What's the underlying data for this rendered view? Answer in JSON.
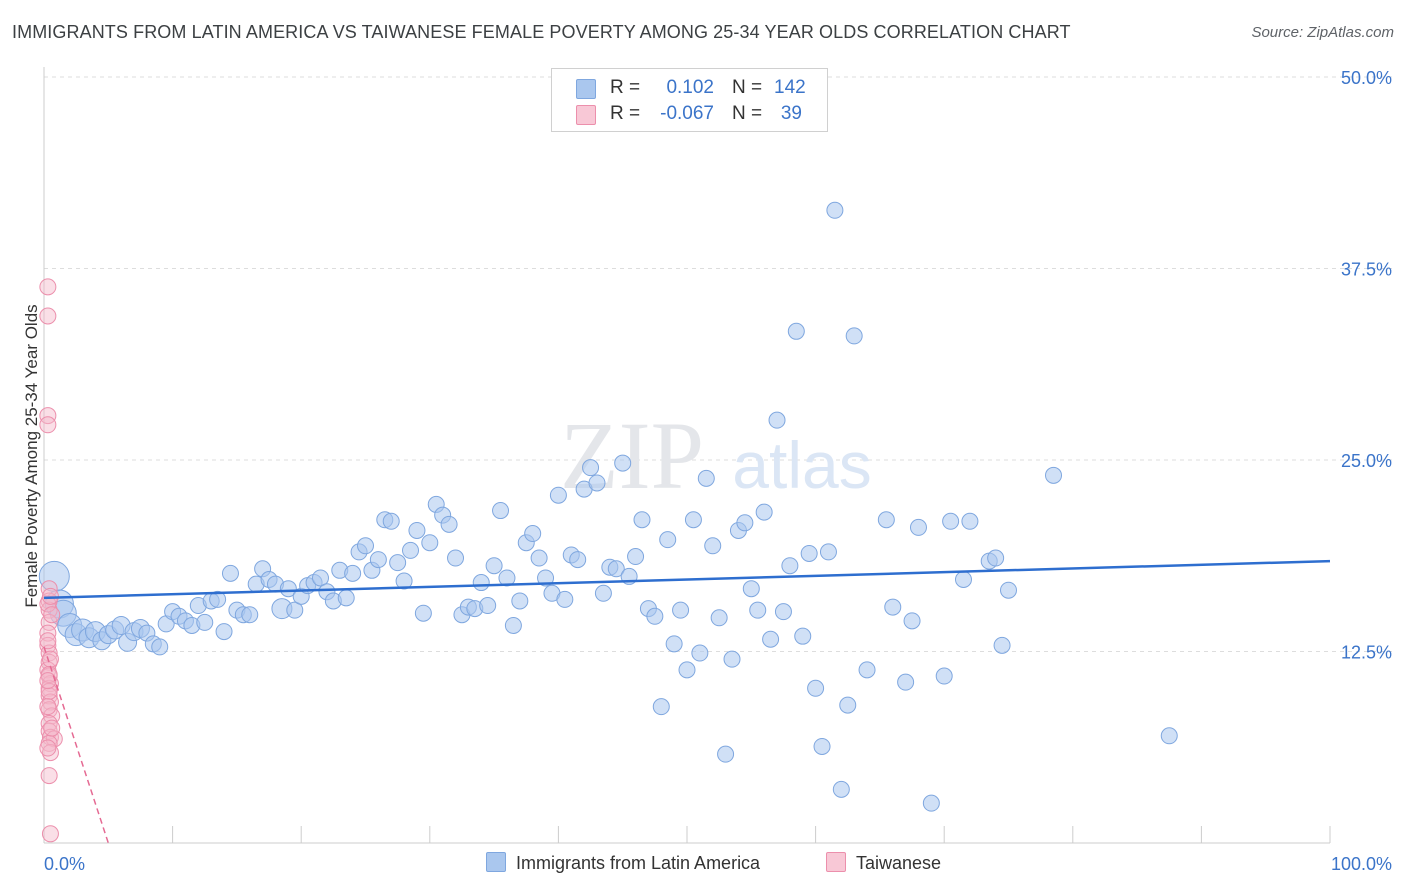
{
  "title": "IMMIGRANTS FROM LATIN AMERICA VS TAIWANESE FEMALE POVERTY AMONG 25-34 YEAR OLDS CORRELATION CHART",
  "source": "Source: ZipAtlas.com",
  "watermark": {
    "zip": "ZIP",
    "atlas": "atlas"
  },
  "legend_top": {
    "rows": [
      {
        "r_label": "R =",
        "r_value": "0.102",
        "n_label": "N =",
        "n_value": "142",
        "color": "#aac7ee"
      },
      {
        "r_label": "R =",
        "r_value": "-0.067",
        "n_label": "N =",
        "n_value": "39",
        "color": "#f4b7c9"
      }
    ]
  },
  "bottom_legend": {
    "blue_label": "Immigrants from Latin America",
    "pink_label": "Taiwanese"
  },
  "colors": {
    "blue_fill": "#aac7ee",
    "blue_stroke": "#7fa7df",
    "blue_line": "#2e6ecf",
    "pink_fill": "#f4b7c9",
    "pink_stroke": "#ec8fac",
    "pink_line": "#e56a93",
    "axis_text": "#3b74c9"
  },
  "chart_data": {
    "type": "scatter",
    "title": "IMMIGRANTS FROM LATIN AMERICA VS TAIWANESE FEMALE POVERTY AMONG 25-34 YEAR OLDS CORRELATION CHART",
    "xlabel": "",
    "ylabel": "Female Poverty Among 25-34 Year Olds",
    "xlim": [
      0,
      100
    ],
    "ylim": [
      0,
      50
    ],
    "x_tick_labels": [
      "0.0%",
      "100.0%"
    ],
    "y_ticks": [
      12.5,
      25.0,
      37.5,
      50.0
    ],
    "y_tick_labels": [
      "12.5%",
      "25.0%",
      "37.5%",
      "50.0%"
    ],
    "grid": true,
    "legend_position": "top-center",
    "series": [
      {
        "name": "Immigrants from Latin America",
        "trend": {
          "x": [
            0,
            100
          ],
          "y": [
            16.0,
            18.4
          ]
        },
        "points": [
          {
            "x": 0.8,
            "y": 17.4,
            "r": 15
          },
          {
            "x": 1.2,
            "y": 15.6,
            "r": 14
          },
          {
            "x": 1.5,
            "y": 15.0,
            "r": 13
          },
          {
            "x": 2.0,
            "y": 14.2,
            "r": 12
          },
          {
            "x": 2.5,
            "y": 13.6,
            "r": 11
          },
          {
            "x": 3.0,
            "y": 13.9,
            "r": 11
          },
          {
            "x": 3.5,
            "y": 13.4,
            "r": 10
          },
          {
            "x": 4.0,
            "y": 13.8,
            "r": 10
          },
          {
            "x": 4.5,
            "y": 13.2,
            "r": 9
          },
          {
            "x": 5.0,
            "y": 13.6,
            "r": 9
          },
          {
            "x": 5.5,
            "y": 13.9,
            "r": 9
          },
          {
            "x": 6.0,
            "y": 14.2,
            "r": 9
          },
          {
            "x": 6.5,
            "y": 13.1,
            "r": 9
          },
          {
            "x": 7.0,
            "y": 13.8,
            "r": 9
          },
          {
            "x": 7.5,
            "y": 14.0,
            "r": 9
          },
          {
            "x": 8.0,
            "y": 13.7,
            "r": 8
          },
          {
            "x": 8.5,
            "y": 13.0,
            "r": 8
          },
          {
            "x": 9.0,
            "y": 12.8,
            "r": 8
          },
          {
            "x": 9.5,
            "y": 14.3,
            "r": 8
          },
          {
            "x": 10.0,
            "y": 15.1,
            "r": 8
          },
          {
            "x": 10.5,
            "y": 14.8,
            "r": 8
          },
          {
            "x": 11.0,
            "y": 14.5,
            "r": 8
          },
          {
            "x": 11.5,
            "y": 14.2,
            "r": 8
          },
          {
            "x": 12.0,
            "y": 15.5,
            "r": 8
          },
          {
            "x": 12.5,
            "y": 14.4,
            "r": 8
          },
          {
            "x": 13.0,
            "y": 15.8,
            "r": 8
          },
          {
            "x": 13.5,
            "y": 15.9,
            "r": 8
          },
          {
            "x": 14.0,
            "y": 13.8,
            "r": 8
          },
          {
            "x": 14.5,
            "y": 17.6,
            "r": 8
          },
          {
            "x": 15.0,
            "y": 15.2,
            "r": 8
          },
          {
            "x": 15.5,
            "y": 14.9,
            "r": 8
          },
          {
            "x": 16.0,
            "y": 14.9,
            "r": 8
          },
          {
            "x": 16.5,
            "y": 16.9,
            "r": 8
          },
          {
            "x": 17.0,
            "y": 17.9,
            "r": 8
          },
          {
            "x": 17.5,
            "y": 17.2,
            "r": 8
          },
          {
            "x": 18.0,
            "y": 16.9,
            "r": 8
          },
          {
            "x": 18.5,
            "y": 15.3,
            "r": 10
          },
          {
            "x": 19.0,
            "y": 16.6,
            "r": 8
          },
          {
            "x": 19.5,
            "y": 15.2,
            "r": 8
          },
          {
            "x": 20.0,
            "y": 16.1,
            "r": 8
          },
          {
            "x": 20.5,
            "y": 16.8,
            "r": 8
          },
          {
            "x": 21.0,
            "y": 17.0,
            "r": 8
          },
          {
            "x": 21.5,
            "y": 17.3,
            "r": 8
          },
          {
            "x": 22.0,
            "y": 16.4,
            "r": 8
          },
          {
            "x": 22.5,
            "y": 15.8,
            "r": 8
          },
          {
            "x": 23.0,
            "y": 17.8,
            "r": 8
          },
          {
            "x": 23.5,
            "y": 16.0,
            "r": 8
          },
          {
            "x": 24.0,
            "y": 17.6,
            "r": 8
          },
          {
            "x": 24.5,
            "y": 19.0,
            "r": 8
          },
          {
            "x": 25.0,
            "y": 19.4,
            "r": 8
          },
          {
            "x": 25.5,
            "y": 17.8,
            "r": 8
          },
          {
            "x": 26.0,
            "y": 18.5,
            "r": 8
          },
          {
            "x": 26.5,
            "y": 21.1,
            "r": 8
          },
          {
            "x": 27.0,
            "y": 21.0,
            "r": 8
          },
          {
            "x": 27.5,
            "y": 18.3,
            "r": 8
          },
          {
            "x": 28.0,
            "y": 17.1,
            "r": 8
          },
          {
            "x": 28.5,
            "y": 19.1,
            "r": 8
          },
          {
            "x": 29.0,
            "y": 20.4,
            "r": 8
          },
          {
            "x": 29.5,
            "y": 15.0,
            "r": 8
          },
          {
            "x": 30.0,
            "y": 19.6,
            "r": 8
          },
          {
            "x": 30.5,
            "y": 22.1,
            "r": 8
          },
          {
            "x": 31.0,
            "y": 21.4,
            "r": 8
          },
          {
            "x": 31.5,
            "y": 20.8,
            "r": 8
          },
          {
            "x": 32.0,
            "y": 18.6,
            "r": 8
          },
          {
            "x": 32.5,
            "y": 14.9,
            "r": 8
          },
          {
            "x": 33.0,
            "y": 15.4,
            "r": 8
          },
          {
            "x": 33.5,
            "y": 15.3,
            "r": 8
          },
          {
            "x": 34.0,
            "y": 17.0,
            "r": 8
          },
          {
            "x": 34.5,
            "y": 15.5,
            "r": 8
          },
          {
            "x": 35.0,
            "y": 18.1,
            "r": 8
          },
          {
            "x": 35.5,
            "y": 21.7,
            "r": 8
          },
          {
            "x": 36.0,
            "y": 17.3,
            "r": 8
          },
          {
            "x": 36.5,
            "y": 14.2,
            "r": 8
          },
          {
            "x": 37.0,
            "y": 15.8,
            "r": 8
          },
          {
            "x": 37.5,
            "y": 19.6,
            "r": 8
          },
          {
            "x": 38.0,
            "y": 20.2,
            "r": 8
          },
          {
            "x": 38.5,
            "y": 18.6,
            "r": 8
          },
          {
            "x": 39.0,
            "y": 17.3,
            "r": 8
          },
          {
            "x": 39.5,
            "y": 16.3,
            "r": 8
          },
          {
            "x": 40.0,
            "y": 22.7,
            "r": 8
          },
          {
            "x": 40.5,
            "y": 15.9,
            "r": 8
          },
          {
            "x": 41.0,
            "y": 18.8,
            "r": 8
          },
          {
            "x": 41.5,
            "y": 18.5,
            "r": 8
          },
          {
            "x": 42.0,
            "y": 23.1,
            "r": 8
          },
          {
            "x": 42.5,
            "y": 24.5,
            "r": 8
          },
          {
            "x": 43.0,
            "y": 23.5,
            "r": 8
          },
          {
            "x": 43.5,
            "y": 16.3,
            "r": 8
          },
          {
            "x": 44.0,
            "y": 18.0,
            "r": 8
          },
          {
            "x": 44.5,
            "y": 17.9,
            "r": 8
          },
          {
            "x": 45.0,
            "y": 24.8,
            "r": 8
          },
          {
            "x": 45.5,
            "y": 17.4,
            "r": 8
          },
          {
            "x": 46.0,
            "y": 18.7,
            "r": 8
          },
          {
            "x": 46.5,
            "y": 21.1,
            "r": 8
          },
          {
            "x": 47.0,
            "y": 15.3,
            "r": 8
          },
          {
            "x": 47.5,
            "y": 14.8,
            "r": 8
          },
          {
            "x": 48.0,
            "y": 8.9,
            "r": 8
          },
          {
            "x": 48.5,
            "y": 19.8,
            "r": 8
          },
          {
            "x": 49.0,
            "y": 13.0,
            "r": 8
          },
          {
            "x": 49.5,
            "y": 15.2,
            "r": 8
          },
          {
            "x": 50.0,
            "y": 11.3,
            "r": 8
          },
          {
            "x": 50.5,
            "y": 21.1,
            "r": 8
          },
          {
            "x": 51.0,
            "y": 12.4,
            "r": 8
          },
          {
            "x": 51.5,
            "y": 23.8,
            "r": 8
          },
          {
            "x": 52.0,
            "y": 19.4,
            "r": 8
          },
          {
            "x": 52.5,
            "y": 14.7,
            "r": 8
          },
          {
            "x": 53.0,
            "y": 5.8,
            "r": 8
          },
          {
            "x": 53.5,
            "y": 12.0,
            "r": 8
          },
          {
            "x": 54.0,
            "y": 20.4,
            "r": 8
          },
          {
            "x": 54.5,
            "y": 20.9,
            "r": 8
          },
          {
            "x": 55.0,
            "y": 16.6,
            "r": 8
          },
          {
            "x": 55.5,
            "y": 15.2,
            "r": 8
          },
          {
            "x": 56.0,
            "y": 21.6,
            "r": 8
          },
          {
            "x": 56.5,
            "y": 13.3,
            "r": 8
          },
          {
            "x": 57.0,
            "y": 27.6,
            "r": 8
          },
          {
            "x": 57.5,
            "y": 15.1,
            "r": 8
          },
          {
            "x": 58.0,
            "y": 18.1,
            "r": 8
          },
          {
            "x": 58.5,
            "y": 33.4,
            "r": 8
          },
          {
            "x": 59.0,
            "y": 13.5,
            "r": 8
          },
          {
            "x": 59.5,
            "y": 18.9,
            "r": 8
          },
          {
            "x": 60.0,
            "y": 10.1,
            "r": 8
          },
          {
            "x": 60.5,
            "y": 6.3,
            "r": 8
          },
          {
            "x": 61.0,
            "y": 19.0,
            "r": 8
          },
          {
            "x": 61.5,
            "y": 41.3,
            "r": 8
          },
          {
            "x": 62.0,
            "y": 3.5,
            "r": 8
          },
          {
            "x": 62.5,
            "y": 9.0,
            "r": 8
          },
          {
            "x": 63.0,
            "y": 33.1,
            "r": 8
          },
          {
            "x": 64.0,
            "y": 11.3,
            "r": 8
          },
          {
            "x": 65.5,
            "y": 21.1,
            "r": 8
          },
          {
            "x": 66.0,
            "y": 15.4,
            "r": 8
          },
          {
            "x": 67.0,
            "y": 10.5,
            "r": 8
          },
          {
            "x": 67.5,
            "y": 14.5,
            "r": 8
          },
          {
            "x": 68.0,
            "y": 20.6,
            "r": 8
          },
          {
            "x": 69.0,
            "y": 2.6,
            "r": 8
          },
          {
            "x": 70.0,
            "y": 10.9,
            "r": 8
          },
          {
            "x": 71.5,
            "y": 17.2,
            "r": 8
          },
          {
            "x": 70.5,
            "y": 21.0,
            "r": 8
          },
          {
            "x": 72.0,
            "y": 21.0,
            "r": 8
          },
          {
            "x": 73.5,
            "y": 18.4,
            "r": 8
          },
          {
            "x": 74.0,
            "y": 18.6,
            "r": 8
          },
          {
            "x": 74.5,
            "y": 12.9,
            "r": 8
          },
          {
            "x": 75.0,
            "y": 16.5,
            "r": 8
          },
          {
            "x": 78.5,
            "y": 24.0,
            "r": 8
          },
          {
            "x": 87.5,
            "y": 7.0,
            "r": 8
          }
        ]
      },
      {
        "name": "Taiwanese",
        "trend": {
          "x": [
            0,
            5
          ],
          "y": [
            12.8,
            0
          ]
        },
        "points": [
          {
            "x": 0.3,
            "y": 36.3,
            "r": 8
          },
          {
            "x": 0.3,
            "y": 34.4,
            "r": 8
          },
          {
            "x": 0.3,
            "y": 27.9,
            "r": 8
          },
          {
            "x": 0.3,
            "y": 27.3,
            "r": 8
          },
          {
            "x": 0.4,
            "y": 16.6,
            "r": 8
          },
          {
            "x": 0.4,
            "y": 15.8,
            "r": 8
          },
          {
            "x": 0.4,
            "y": 15.2,
            "r": 8
          },
          {
            "x": 0.4,
            "y": 14.4,
            "r": 8
          },
          {
            "x": 0.3,
            "y": 13.7,
            "r": 8
          },
          {
            "x": 0.3,
            "y": 12.9,
            "r": 8
          },
          {
            "x": 0.4,
            "y": 12.4,
            "r": 8
          },
          {
            "x": 0.4,
            "y": 11.8,
            "r": 8
          },
          {
            "x": 0.3,
            "y": 11.3,
            "r": 8
          },
          {
            "x": 0.4,
            "y": 10.9,
            "r": 8
          },
          {
            "x": 0.5,
            "y": 10.4,
            "r": 8
          },
          {
            "x": 0.4,
            "y": 10.1,
            "r": 8
          },
          {
            "x": 0.4,
            "y": 9.6,
            "r": 8
          },
          {
            "x": 0.5,
            "y": 9.2,
            "r": 8
          },
          {
            "x": 0.4,
            "y": 8.7,
            "r": 8
          },
          {
            "x": 0.6,
            "y": 8.3,
            "r": 8
          },
          {
            "x": 0.4,
            "y": 7.8,
            "r": 8
          },
          {
            "x": 0.4,
            "y": 7.3,
            "r": 8
          },
          {
            "x": 0.5,
            "y": 6.9,
            "r": 8
          },
          {
            "x": 0.8,
            "y": 6.8,
            "r": 8
          },
          {
            "x": 0.4,
            "y": 6.5,
            "r": 8
          },
          {
            "x": 0.5,
            "y": 5.9,
            "r": 8
          },
          {
            "x": 0.4,
            "y": 4.4,
            "r": 8
          },
          {
            "x": 0.5,
            "y": 0.6,
            "r": 8
          },
          {
            "x": 0.3,
            "y": 15.6,
            "r": 8
          },
          {
            "x": 0.6,
            "y": 14.9,
            "r": 8
          },
          {
            "x": 0.3,
            "y": 13.2,
            "r": 8
          },
          {
            "x": 0.5,
            "y": 12.0,
            "r": 8
          },
          {
            "x": 0.4,
            "y": 9.9,
            "r": 8
          },
          {
            "x": 0.3,
            "y": 8.9,
            "r": 8
          },
          {
            "x": 0.6,
            "y": 7.5,
            "r": 8
          },
          {
            "x": 0.3,
            "y": 6.2,
            "r": 8
          },
          {
            "x": 0.5,
            "y": 16.1,
            "r": 8
          },
          {
            "x": 0.4,
            "y": 11.0,
            "r": 8
          },
          {
            "x": 0.3,
            "y": 10.6,
            "r": 8
          }
        ]
      }
    ]
  }
}
